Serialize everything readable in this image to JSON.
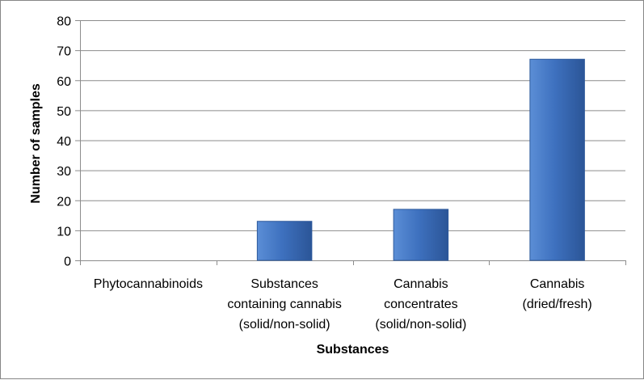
{
  "chart_data": {
    "type": "bar",
    "categories": [
      [
        "Phytocannabinoids"
      ],
      [
        "Substances",
        "containing cannabis",
        "(solid/non-solid)"
      ],
      [
        "Cannabis",
        "concentrates",
        "(solid/non-solid)"
      ],
      [
        "Cannabis",
        "(dried/fresh)"
      ]
    ],
    "values": [
      0,
      13,
      17,
      67
    ],
    "xlabel": "Substances",
    "ylabel": "Number of samples",
    "ylim": [
      0,
      80
    ],
    "yticks": [
      "0",
      "10",
      "20",
      "30",
      "40",
      "50",
      "60",
      "70",
      "80"
    ],
    "grid": true,
    "legend": "none",
    "colors": {
      "bar_light": "#5B8ED6",
      "bar_mid": "#3E71BF",
      "bar_dark": "#2B5597",
      "bar_border": "#2E5A9C",
      "grid": "#8C8C8C",
      "axis": "#8C8C8C"
    }
  }
}
